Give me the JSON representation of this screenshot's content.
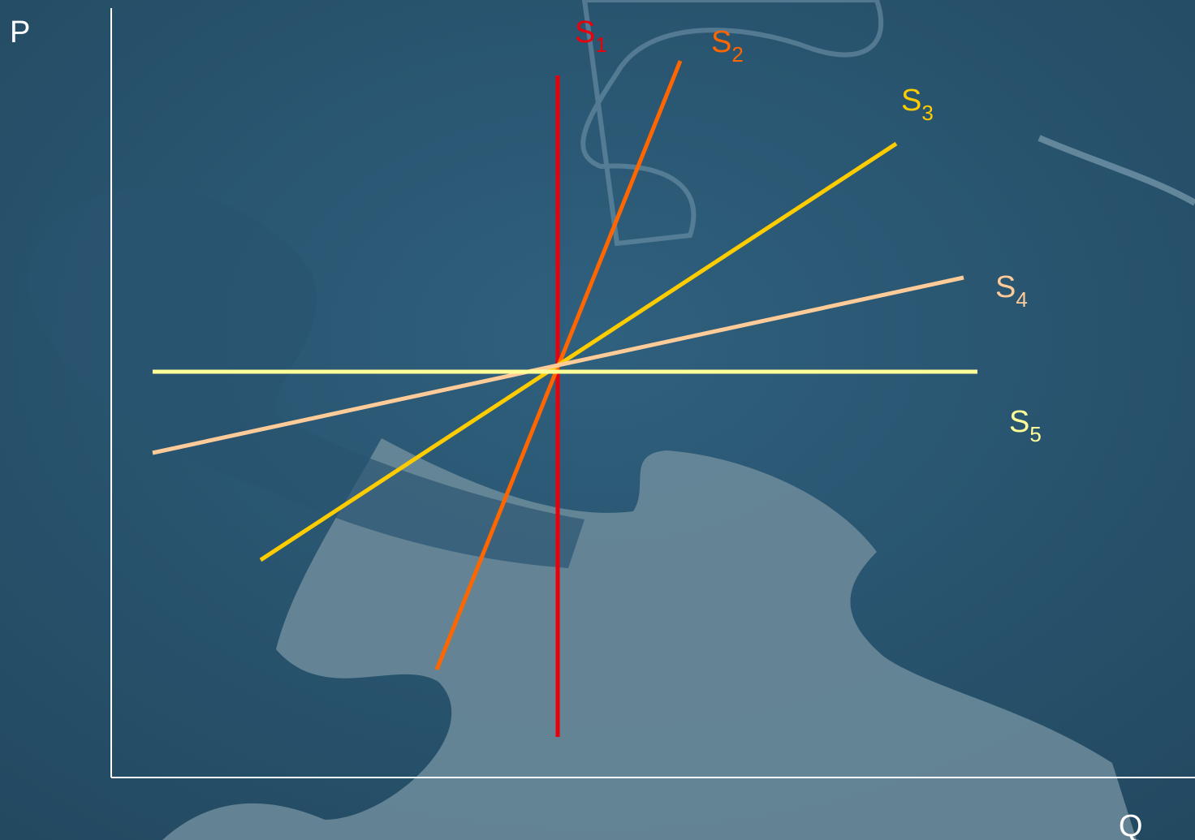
{
  "axes": {
    "y_label": "P",
    "x_label": "Q"
  },
  "curves": [
    {
      "letter": "S",
      "index": "1"
    },
    {
      "letter": "S",
      "index": "2"
    },
    {
      "letter": "S",
      "index": "3"
    },
    {
      "letter": "S",
      "index": "4"
    },
    {
      "letter": "S",
      "index": "5"
    }
  ]
}
